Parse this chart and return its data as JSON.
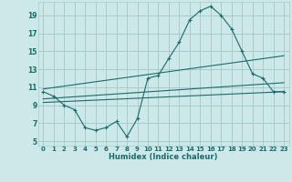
{
  "xlabel": "Humidex (Indice chaleur)",
  "background_color": "#cce8e8",
  "grid_color": "#aacaca",
  "line_color": "#1a6b6b",
  "xlim": [
    -0.5,
    23.5
  ],
  "ylim": [
    4.5,
    20.5
  ],
  "xticks": [
    0,
    1,
    2,
    3,
    4,
    5,
    6,
    7,
    8,
    9,
    10,
    11,
    12,
    13,
    14,
    15,
    16,
    17,
    18,
    19,
    20,
    21,
    22,
    23
  ],
  "yticks": [
    5,
    7,
    9,
    11,
    13,
    15,
    17,
    19
  ],
  "curve1_x": [
    0,
    1,
    2,
    3,
    4,
    5,
    6,
    7,
    8,
    9,
    10,
    11,
    12,
    13,
    14,
    15,
    16,
    17,
    18,
    19,
    20,
    21,
    22,
    23
  ],
  "curve1_y": [
    10.5,
    10.0,
    9.0,
    8.5,
    6.5,
    6.2,
    6.5,
    7.2,
    5.5,
    7.5,
    12.0,
    12.3,
    14.2,
    16.0,
    18.5,
    19.5,
    20.0,
    19.0,
    17.5,
    15.0,
    12.5,
    12.0,
    10.5,
    10.5
  ],
  "curve2_x": [
    0,
    23
  ],
  "curve2_y": [
    10.8,
    14.5
  ],
  "curve3_x": [
    0,
    23
  ],
  "curve3_y": [
    9.7,
    11.5
  ],
  "curve4_x": [
    0,
    23
  ],
  "curve4_y": [
    9.3,
    10.5
  ],
  "xlabel_fontsize": 6.0,
  "tick_fontsize_x": 5.0,
  "tick_fontsize_y": 5.5
}
